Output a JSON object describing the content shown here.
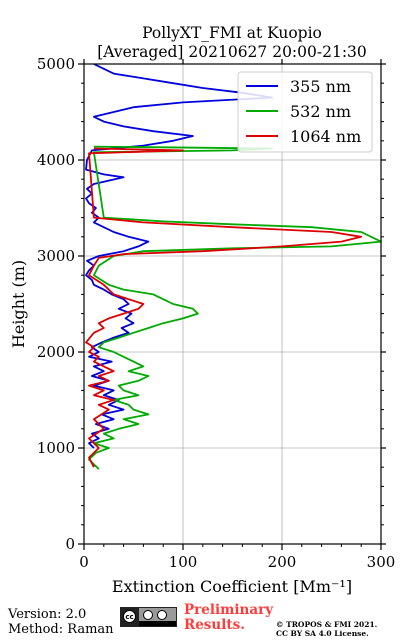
{
  "chart_data": {
    "type": "line",
    "title_line1": "PollyXT_FMI at Kuopio",
    "title_line2": "[Averaged] 20210627 20:00-21:30",
    "xlabel": "Extinction Coefficient [Mm⁻¹]",
    "ylabel": "Height (m)",
    "xlim": [
      0,
      300
    ],
    "ylim": [
      0,
      5000
    ],
    "x_ticks": [
      0,
      100,
      200,
      300
    ],
    "y_ticks": [
      0,
      1000,
      2000,
      3000,
      4000,
      5000
    ],
    "x_tick_labels": [
      "0",
      "100",
      "200",
      "300"
    ],
    "y_tick_labels": [
      "0",
      "1000",
      "2000",
      "3000",
      "4000",
      "5000"
    ],
    "grid": true,
    "legend_position": "top-right",
    "series": [
      {
        "name": "355 nm",
        "color": "#0000dd",
        "points": [
          [
            10,
            1000
          ],
          [
            5,
            1050
          ],
          [
            15,
            1100
          ],
          [
            8,
            1150
          ],
          [
            25,
            1200
          ],
          [
            12,
            1250
          ],
          [
            30,
            1300
          ],
          [
            18,
            1350
          ],
          [
            40,
            1400
          ],
          [
            25,
            1450
          ],
          [
            35,
            1500
          ],
          [
            20,
            1550
          ],
          [
            30,
            1600
          ],
          [
            10,
            1650
          ],
          [
            25,
            1700
          ],
          [
            8,
            1750
          ],
          [
            20,
            1800
          ],
          [
            10,
            1850
          ],
          [
            28,
            1900
          ],
          [
            5,
            1950
          ],
          [
            15,
            2000
          ],
          [
            8,
            2050
          ],
          [
            18,
            2100
          ],
          [
            30,
            2150
          ],
          [
            45,
            2200
          ],
          [
            38,
            2250
          ],
          [
            50,
            2300
          ],
          [
            42,
            2350
          ],
          [
            48,
            2400
          ],
          [
            35,
            2450
          ],
          [
            45,
            2500
          ],
          [
            40,
            2550
          ],
          [
            28,
            2600
          ],
          [
            20,
            2650
          ],
          [
            10,
            2700
          ],
          [
            8,
            2750
          ],
          [
            2,
            2800
          ],
          [
            5,
            2850
          ],
          [
            10,
            2900
          ],
          [
            3,
            2950
          ],
          [
            15,
            3000
          ],
          [
            40,
            3050
          ],
          [
            55,
            3100
          ],
          [
            65,
            3150
          ],
          [
            45,
            3200
          ],
          [
            30,
            3250
          ],
          [
            20,
            3300
          ],
          [
            10,
            3350
          ],
          [
            15,
            3400
          ],
          [
            8,
            3450
          ],
          [
            12,
            3500
          ],
          [
            5,
            3550
          ],
          [
            2,
            3600
          ],
          [
            8,
            3650
          ],
          [
            3,
            3700
          ],
          [
            10,
            3750
          ],
          [
            40,
            3820
          ],
          [
            20,
            3850
          ],
          [
            2,
            3900
          ],
          [
            3,
            4000
          ],
          [
            8,
            4100
          ],
          [
            60,
            4150
          ],
          [
            90,
            4200
          ],
          [
            110,
            4250
          ],
          [
            70,
            4300
          ],
          [
            40,
            4350
          ],
          [
            20,
            4400
          ],
          [
            10,
            4450
          ],
          [
            30,
            4500
          ],
          [
            50,
            4550
          ],
          [
            100,
            4600
          ],
          [
            190,
            4650
          ],
          [
            160,
            4700
          ],
          [
            120,
            4750
          ],
          [
            90,
            4800
          ],
          [
            60,
            4850
          ],
          [
            30,
            4900
          ],
          [
            20,
            4950
          ],
          [
            10,
            5000
          ]
        ]
      },
      {
        "name": "532 nm",
        "color": "#00aa00",
        "points": [
          [
            15,
            780
          ],
          [
            10,
            830
          ],
          [
            5,
            880
          ],
          [
            12,
            950
          ],
          [
            25,
            1000
          ],
          [
            10,
            1050
          ],
          [
            30,
            1100
          ],
          [
            20,
            1150
          ],
          [
            35,
            1200
          ],
          [
            55,
            1250
          ],
          [
            40,
            1300
          ],
          [
            65,
            1350
          ],
          [
            50,
            1400
          ],
          [
            45,
            1450
          ],
          [
            30,
            1500
          ],
          [
            55,
            1550
          ],
          [
            40,
            1600
          ],
          [
            35,
            1650
          ],
          [
            55,
            1700
          ],
          [
            65,
            1750
          ],
          [
            45,
            1800
          ],
          [
            60,
            1850
          ],
          [
            50,
            1900
          ],
          [
            40,
            1950
          ],
          [
            30,
            2000
          ],
          [
            15,
            2050
          ],
          [
            20,
            2100
          ],
          [
            35,
            2150
          ],
          [
            50,
            2200
          ],
          [
            65,
            2250
          ],
          [
            80,
            2300
          ],
          [
            100,
            2350
          ],
          [
            115,
            2400
          ],
          [
            110,
            2450
          ],
          [
            90,
            2500
          ],
          [
            80,
            2550
          ],
          [
            70,
            2600
          ],
          [
            40,
            2650
          ],
          [
            25,
            2700
          ],
          [
            10,
            2800
          ],
          [
            15,
            2900
          ],
          [
            30,
            3000
          ],
          [
            60,
            3050
          ],
          [
            150,
            3080
          ],
          [
            250,
            3100
          ],
          [
            300,
            3150
          ],
          [
            280,
            3250
          ],
          [
            230,
            3300
          ],
          [
            150,
            3330
          ],
          [
            80,
            3360
          ],
          [
            20,
            3400
          ],
          [
            10,
            4080
          ],
          [
            150,
            4100
          ],
          [
            190,
            4120
          ],
          [
            10,
            4140
          ]
        ]
      },
      {
        "name": "1064 nm",
        "color": "#dd0000",
        "points": [
          [
            10,
            800
          ],
          [
            5,
            900
          ],
          [
            15,
            1000
          ],
          [
            5,
            1100
          ],
          [
            20,
            1200
          ],
          [
            10,
            1300
          ],
          [
            25,
            1400
          ],
          [
            15,
            1450
          ],
          [
            30,
            1500
          ],
          [
            10,
            1550
          ],
          [
            20,
            1600
          ],
          [
            5,
            1650
          ],
          [
            25,
            1700
          ],
          [
            15,
            1750
          ],
          [
            30,
            1800
          ],
          [
            20,
            1850
          ],
          [
            10,
            1900
          ],
          [
            15,
            1950
          ],
          [
            5,
            2000
          ],
          [
            10,
            2050
          ],
          [
            2,
            2100
          ],
          [
            10,
            2200
          ],
          [
            20,
            2250
          ],
          [
            15,
            2300
          ],
          [
            25,
            2350
          ],
          [
            40,
            2400
          ],
          [
            55,
            2450
          ],
          [
            60,
            2500
          ],
          [
            45,
            2550
          ],
          [
            30,
            2600
          ],
          [
            20,
            2700
          ],
          [
            5,
            2800
          ],
          [
            10,
            2900
          ],
          [
            15,
            2980
          ],
          [
            40,
            3020
          ],
          [
            120,
            3050
          ],
          [
            200,
            3100
          ],
          [
            260,
            3150
          ],
          [
            280,
            3200
          ],
          [
            250,
            3250
          ],
          [
            150,
            3300
          ],
          [
            60,
            3350
          ],
          [
            10,
            3400
          ],
          [
            5,
            4070
          ],
          [
            70,
            4090
          ],
          [
            100,
            4100
          ],
          [
            10,
            4120
          ]
        ]
      }
    ]
  },
  "footer": {
    "version": "Version: 2.0",
    "method": "Method: Raman",
    "preliminary_line1": "Preliminary",
    "preliminary_line2": "Results.",
    "copyright_line1": "© TROPOS & FMI 2021.",
    "copyright_line2": "CC BY SA 4.0 License."
  }
}
